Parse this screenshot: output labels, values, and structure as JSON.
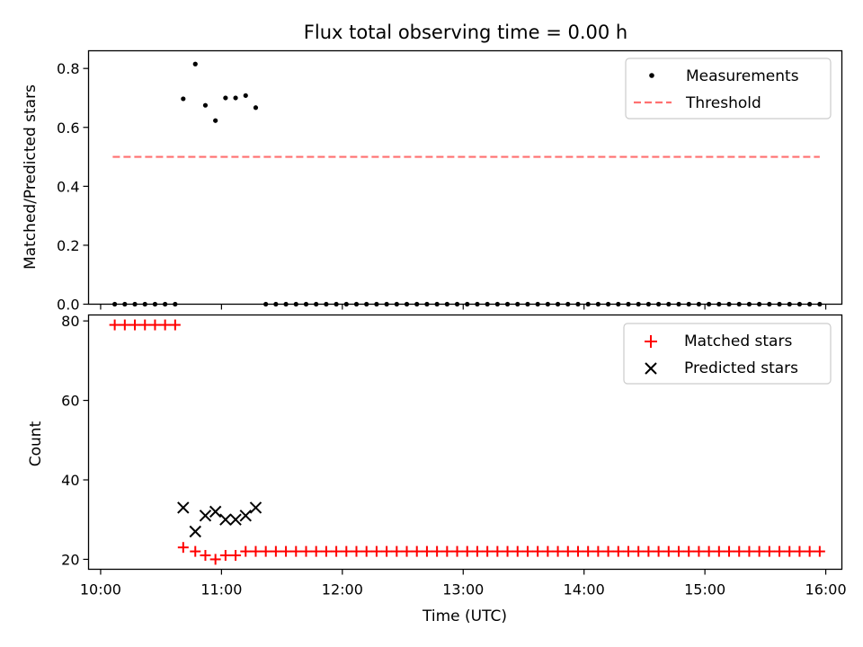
{
  "title": "Flux total observing time = 0.00 h",
  "colors": {
    "measurements": "#000000",
    "threshold": "#ff7070",
    "matched": "#ff0000",
    "predicted": "#000000"
  },
  "chart_data": [
    {
      "type": "scatter",
      "panel": "top",
      "title": "Flux total observing time = 0.00 h",
      "xlabel": "",
      "ylabel": "Matched/Predicted stars",
      "ylim": [
        0,
        0.86
      ],
      "yticks": [
        "0.0",
        "0.2",
        "0.4",
        "0.6",
        "0.8"
      ],
      "grid": false,
      "legend_position": "top-right",
      "series": [
        {
          "name": "Measurements",
          "marker": "dot",
          "points": [
            [
              "10:07",
              0.0
            ],
            [
              "10:12",
              0.0
            ],
            [
              "10:17",
              0.0
            ],
            [
              "10:22",
              0.0
            ],
            [
              "10:27",
              0.0
            ],
            [
              "10:32",
              0.0
            ],
            [
              "10:37",
              0.0
            ],
            [
              "10:41",
              0.697
            ],
            [
              "10:47",
              0.815
            ],
            [
              "10:52",
              0.675
            ],
            [
              "10:57",
              0.623
            ],
            [
              "11:02",
              0.7
            ],
            [
              "11:07",
              0.7
            ],
            [
              "11:12",
              0.708
            ],
            [
              "11:17",
              0.667
            ],
            [
              "11:22",
              0.0
            ],
            [
              "11:27",
              0.0
            ],
            [
              "11:32",
              0.0
            ],
            [
              "11:37",
              0.0
            ],
            [
              "11:42",
              0.0
            ],
            [
              "11:47",
              0.0
            ],
            [
              "11:52",
              0.0
            ],
            [
              "11:57",
              0.0
            ],
            [
              "12:02",
              0.0
            ],
            [
              "12:07",
              0.0
            ],
            [
              "12:12",
              0.0
            ],
            [
              "12:17",
              0.0
            ],
            [
              "12:22",
              0.0
            ],
            [
              "12:27",
              0.0
            ],
            [
              "12:32",
              0.0
            ],
            [
              "12:37",
              0.0
            ],
            [
              "12:42",
              0.0
            ],
            [
              "12:47",
              0.0
            ],
            [
              "12:52",
              0.0
            ],
            [
              "12:57",
              0.0
            ],
            [
              "13:02",
              0.0
            ],
            [
              "13:07",
              0.0
            ],
            [
              "13:12",
              0.0
            ],
            [
              "13:17",
              0.0
            ],
            [
              "13:22",
              0.0
            ],
            [
              "13:27",
              0.0
            ],
            [
              "13:32",
              0.0
            ],
            [
              "13:37",
              0.0
            ],
            [
              "13:42",
              0.0
            ],
            [
              "13:47",
              0.0
            ],
            [
              "13:52",
              0.0
            ],
            [
              "13:57",
              0.0
            ],
            [
              "14:02",
              0.0
            ],
            [
              "14:07",
              0.0
            ],
            [
              "14:12",
              0.0
            ],
            [
              "14:17",
              0.0
            ],
            [
              "14:22",
              0.0
            ],
            [
              "14:27",
              0.0
            ],
            [
              "14:32",
              0.0
            ],
            [
              "14:37",
              0.0
            ],
            [
              "14:42",
              0.0
            ],
            [
              "14:47",
              0.0
            ],
            [
              "14:52",
              0.0
            ],
            [
              "14:57",
              0.0
            ],
            [
              "15:02",
              0.0
            ],
            [
              "15:07",
              0.0
            ],
            [
              "15:12",
              0.0
            ],
            [
              "15:17",
              0.0
            ],
            [
              "15:22",
              0.0
            ],
            [
              "15:27",
              0.0
            ],
            [
              "15:32",
              0.0
            ],
            [
              "15:37",
              0.0
            ],
            [
              "15:42",
              0.0
            ],
            [
              "15:47",
              0.0
            ],
            [
              "15:52",
              0.0
            ],
            [
              "15:57",
              0.0
            ]
          ]
        },
        {
          "name": "Threshold",
          "style": "dashed-line",
          "points": [
            [
              "10:06",
              0.5
            ],
            [
              "15:57",
              0.5
            ]
          ]
        }
      ]
    },
    {
      "type": "scatter",
      "panel": "bottom",
      "xlabel": "Time (UTC)",
      "ylabel": "Count",
      "ylim": [
        17.5,
        81.5
      ],
      "yticks": [
        "20",
        "40",
        "60",
        "80"
      ],
      "xlim": [
        "09:54",
        "16:08"
      ],
      "xticks": [
        "10:00",
        "11:00",
        "12:00",
        "13:00",
        "14:00",
        "15:00",
        "16:00"
      ],
      "grid": false,
      "legend_position": "top-right",
      "series": [
        {
          "name": "Matched stars",
          "marker": "plus",
          "points": [
            [
              "10:07",
              79
            ],
            [
              "10:12",
              79
            ],
            [
              "10:17",
              79
            ],
            [
              "10:22",
              79
            ],
            [
              "10:27",
              79
            ],
            [
              "10:32",
              79
            ],
            [
              "10:37",
              79
            ],
            [
              "10:41",
              23
            ],
            [
              "10:47",
              22
            ],
            [
              "10:52",
              21
            ],
            [
              "10:57",
              20
            ],
            [
              "11:02",
              21
            ],
            [
              "11:07",
              21
            ],
            [
              "11:12",
              22
            ],
            [
              "11:17",
              22
            ],
            [
              "11:22",
              22
            ],
            [
              "11:27",
              22
            ],
            [
              "11:32",
              22
            ],
            [
              "11:37",
              22
            ],
            [
              "11:42",
              22
            ],
            [
              "11:47",
              22
            ],
            [
              "11:52",
              22
            ],
            [
              "11:57",
              22
            ],
            [
              "12:02",
              22
            ],
            [
              "12:07",
              22
            ],
            [
              "12:12",
              22
            ],
            [
              "12:17",
              22
            ],
            [
              "12:22",
              22
            ],
            [
              "12:27",
              22
            ],
            [
              "12:32",
              22
            ],
            [
              "12:37",
              22
            ],
            [
              "12:42",
              22
            ],
            [
              "12:47",
              22
            ],
            [
              "12:52",
              22
            ],
            [
              "12:57",
              22
            ],
            [
              "13:02",
              22
            ],
            [
              "13:07",
              22
            ],
            [
              "13:12",
              22
            ],
            [
              "13:17",
              22
            ],
            [
              "13:22",
              22
            ],
            [
              "13:27",
              22
            ],
            [
              "13:32",
              22
            ],
            [
              "13:37",
              22
            ],
            [
              "13:42",
              22
            ],
            [
              "13:47",
              22
            ],
            [
              "13:52",
              22
            ],
            [
              "13:57",
              22
            ],
            [
              "14:02",
              22
            ],
            [
              "14:07",
              22
            ],
            [
              "14:12",
              22
            ],
            [
              "14:17",
              22
            ],
            [
              "14:22",
              22
            ],
            [
              "14:27",
              22
            ],
            [
              "14:32",
              22
            ],
            [
              "14:37",
              22
            ],
            [
              "14:42",
              22
            ],
            [
              "14:47",
              22
            ],
            [
              "14:52",
              22
            ],
            [
              "14:57",
              22
            ],
            [
              "15:02",
              22
            ],
            [
              "15:07",
              22
            ],
            [
              "15:12",
              22
            ],
            [
              "15:17",
              22
            ],
            [
              "15:22",
              22
            ],
            [
              "15:27",
              22
            ],
            [
              "15:32",
              22
            ],
            [
              "15:37",
              22
            ],
            [
              "15:42",
              22
            ],
            [
              "15:47",
              22
            ],
            [
              "15:52",
              22
            ],
            [
              "15:57",
              22
            ]
          ]
        },
        {
          "name": "Predicted stars",
          "marker": "x",
          "points": [
            [
              "10:41",
              33
            ],
            [
              "10:47",
              27
            ],
            [
              "10:52",
              31
            ],
            [
              "10:57",
              32
            ],
            [
              "11:02",
              30
            ],
            [
              "11:07",
              30
            ],
            [
              "11:12",
              31
            ],
            [
              "11:17",
              33
            ]
          ]
        }
      ]
    }
  ]
}
